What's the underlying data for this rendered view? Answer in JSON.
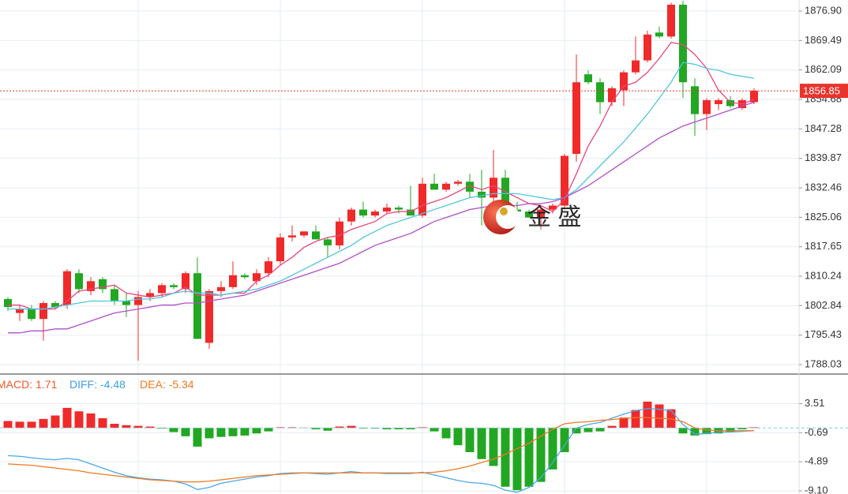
{
  "chart_data": [
    {
      "type": "candlestick",
      "open": [
        1804.5,
        1801,
        1802,
        1799.5,
        1803.5,
        1803,
        1811,
        1806.5,
        1809.5,
        1807,
        1804,
        1803,
        1805,
        1806,
        1808,
        1807,
        1811,
        1793.5,
        1806.5,
        1807.5,
        1810.5,
        1809,
        1811,
        1814,
        1820,
        1820.5,
        1821.5,
        1819.5,
        1818,
        1824,
        1827,
        1825.5,
        1826.5,
        1827.5,
        1827,
        1825.5,
        1833.5,
        1832,
        1833.5,
        1834,
        1831.5,
        1830,
        1835,
        1827,
        1826.5,
        1825,
        1827,
        1828,
        1841,
        1861,
        1859,
        1854,
        1857,
        1861.5,
        1864.5,
        1871.5,
        1870.5,
        1878.5,
        1858,
        1851,
        1853.5,
        1854.5,
        1852.5,
        1854
      ],
      "high": [
        1805,
        1803,
        1803,
        1804,
        1804,
        1812,
        1812,
        1810,
        1810,
        1808,
        1806,
        1806.5,
        1807,
        1808.5,
        1808.5,
        1811.5,
        1815,
        1807,
        1809,
        1814,
        1811,
        1812,
        1815,
        1821,
        1823,
        1821.5,
        1823,
        1820,
        1825,
        1827.5,
        1829,
        1827,
        1828.5,
        1828,
        1833,
        1835,
        1836,
        1834,
        1834.5,
        1836,
        1837,
        1842,
        1837,
        1829,
        1827,
        1828,
        1828.5,
        1841,
        1866,
        1862,
        1860,
        1858,
        1862,
        1870.5,
        1872,
        1873,
        1879,
        1879.5,
        1860,
        1855,
        1855,
        1855.5,
        1855,
        1857.5
      ],
      "low": [
        1801.5,
        1799,
        1799,
        1794,
        1802,
        1802,
        1806,
        1805.5,
        1806,
        1803,
        1800,
        1789,
        1804,
        1805,
        1807,
        1806,
        1794.5,
        1792,
        1805,
        1807,
        1809.5,
        1808,
        1810,
        1813,
        1819,
        1820,
        1819.5,
        1815,
        1817,
        1823,
        1825,
        1825,
        1826,
        1826,
        1825.5,
        1825,
        1832,
        1831.5,
        1833,
        1830,
        1823,
        1828,
        1825,
        1826,
        1825,
        1822,
        1826,
        1827,
        1839,
        1858.5,
        1851,
        1853,
        1853,
        1861,
        1864,
        1870,
        1870,
        1855,
        1845.5,
        1847,
        1852,
        1852.5,
        1852,
        1853.5
      ],
      "close": [
        1802.5,
        1802,
        1799.5,
        1803.5,
        1802.5,
        1811.5,
        1807,
        1809,
        1807,
        1804,
        1803,
        1805,
        1806,
        1808,
        1807.5,
        1811,
        1794.5,
        1806.5,
        1807.5,
        1810.5,
        1810,
        1811,
        1814,
        1820,
        1820.5,
        1821.5,
        1819.5,
        1818,
        1824,
        1827,
        1825.5,
        1826.5,
        1827.5,
        1827,
        1825.5,
        1833.5,
        1832,
        1833.5,
        1834,
        1831.5,
        1830,
        1835,
        1827,
        1826.5,
        1825,
        1827,
        1828,
        1840.5,
        1859,
        1859,
        1854,
        1857.5,
        1861.5,
        1864.5,
        1871,
        1870.5,
        1878.5,
        1859,
        1851,
        1854.5,
        1854.5,
        1853,
        1854.5,
        1856.85
      ],
      "up_color": "#f02a2a",
      "down_color": "#22a722",
      "series": [
        {
          "color": "#e8467c",
          "values": [
            1803,
            1803,
            1802,
            1802,
            1802,
            1804,
            1806.5,
            1807,
            1807.5,
            1808,
            1806,
            1805.5,
            1805,
            1805.5,
            1806,
            1807.5,
            1805.5,
            1805.5,
            1805.5,
            1806,
            1806,
            1809,
            1810.5,
            1813,
            1815,
            1817.5,
            1819,
            1820,
            1820.5,
            1822,
            1823,
            1824,
            1826,
            1826.5,
            1826.5,
            1828,
            1829,
            1830,
            1831.5,
            1833,
            1832,
            1833,
            1831.5,
            1830,
            1828.5,
            1828,
            1826.5,
            1829.5,
            1836,
            1843,
            1848,
            1854,
            1858,
            1859,
            1861.5,
            1865,
            1869,
            1868.5,
            1866,
            1862.5,
            1857,
            1854,
            1853.5,
            1854.7
          ]
        },
        {
          "color": "#4fc6dd",
          "values": [
            1802,
            1802,
            1802,
            1802,
            1802.5,
            1803,
            1803.5,
            1804,
            1804,
            1804,
            1804,
            1804.5,
            1804.5,
            1805,
            1806,
            1806.5,
            1806,
            1806,
            1805.5,
            1806,
            1806.5,
            1807,
            1808,
            1809,
            1810.5,
            1812,
            1813.5,
            1815,
            1816.5,
            1818,
            1820,
            1821.5,
            1823,
            1824,
            1825,
            1826,
            1827,
            1828,
            1829,
            1830,
            1830.5,
            1831,
            1831,
            1831,
            1830.5,
            1830,
            1829.5,
            1830,
            1832,
            1835,
            1838,
            1841,
            1844,
            1847.5,
            1851,
            1855,
            1859,
            1864,
            1863.5,
            1862.5,
            1862,
            1861,
            1860.5,
            1860
          ]
        },
        {
          "color": "#b04fc9",
          "values": [
            1796,
            1796,
            1796.5,
            1796.5,
            1797,
            1797,
            1798,
            1799,
            1800,
            1801,
            1801.5,
            1802,
            1802.5,
            1803,
            1803,
            1803.5,
            1803.5,
            1804,
            1804.5,
            1805,
            1805.5,
            1806.5,
            1807.5,
            1808.5,
            1809.5,
            1810.5,
            1811.5,
            1812.5,
            1813.5,
            1815,
            1816.5,
            1818,
            1819,
            1820,
            1821,
            1822.5,
            1824,
            1825,
            1826,
            1827,
            1827.5,
            1828,
            1828,
            1828,
            1828.5,
            1828.5,
            1829,
            1830,
            1831.5,
            1833,
            1835,
            1837,
            1839,
            1841,
            1843,
            1845,
            1846.5,
            1848,
            1849,
            1850,
            1851,
            1852,
            1853,
            1854
          ]
        }
      ],
      "last_price": 1856.85,
      "ylim": [
        1785.85,
        1879.68
      ],
      "yticks": [
        {
          "value": 1876.9,
          "label": "1876.90"
        },
        1869.49,
        1862.09,
        1854.68,
        1847.28,
        1839.87,
        1832.46,
        1825.06,
        1817.65,
        1810.24,
        1802.84,
        1795.43,
        1788.03
      ],
      "watermark": "金 盛"
    },
    {
      "type": "macd",
      "legend": [
        {
          "label": "MACD:",
          "value": 1.71,
          "color": "#f05a28"
        },
        {
          "label": "DIFF:",
          "value": -4.48,
          "color": "#3ba0e6"
        },
        {
          "label": "DEA:",
          "value": -5.34,
          "color": "#f07820"
        }
      ],
      "histogram": [
        1.0,
        0.9,
        0.9,
        1.3,
        1.8,
        2.9,
        2.4,
        2.1,
        1.4,
        0.6,
        0.4,
        0.3,
        0.2,
        -0.1,
        -0.6,
        -1.2,
        -2.7,
        -1.5,
        -1.3,
        -1.2,
        -1.1,
        -0.8,
        -0.5,
        0.1,
        0.1,
        0.05,
        -0.2,
        -0.4,
        0.2,
        0.3,
        -0.1,
        -0.1,
        -0.2,
        -0.2,
        -0.2,
        0.1,
        -0.5,
        -1.5,
        -2.5,
        -3.5,
        -4.5,
        -5.5,
        -8.5,
        -9.0,
        -8.5,
        -7.8,
        -6.0,
        -3.5,
        -0.8,
        -0.6,
        -0.5,
        0.3,
        1.5,
        2.6,
        3.8,
        3.4,
        2.7,
        -0.8,
        -1.1,
        -0.9,
        -0.8,
        -0.6,
        -0.2,
        0.1
      ],
      "up_color": "#f02a2a",
      "down_color": "#22a722",
      "series": [
        {
          "color": "#4aa8e8",
          "values": [
            -4.0,
            -4.1,
            -4.3,
            -4.5,
            -4.6,
            -4.4,
            -4.6,
            -5.2,
            -5.8,
            -6.4,
            -6.9,
            -7.2,
            -7.4,
            -7.5,
            -7.7,
            -8.1,
            -8.9,
            -8.6,
            -8.0,
            -7.7,
            -7.4,
            -7.1,
            -6.9,
            -6.6,
            -6.5,
            -6.5,
            -6.6,
            -6.7,
            -6.5,
            -6.3,
            -6.5,
            -6.5,
            -6.6,
            -6.6,
            -6.6,
            -6.4,
            -6.8,
            -7.2,
            -7.6,
            -7.9,
            -8.0,
            -8.3,
            -9.0,
            -9.3,
            -8.6,
            -7.2,
            -5.0,
            -2.5,
            0.0,
            0.5,
            0.8,
            1.4,
            2.0,
            2.5,
            2.8,
            2.7,
            2.5,
            0.5,
            -0.9,
            -0.8,
            -0.6,
            -0.6,
            -0.5,
            -0.4
          ]
        },
        {
          "color": "#f07820",
          "values": [
            -5.2,
            -5.3,
            -5.4,
            -5.6,
            -5.8,
            -6.0,
            -6.2,
            -6.5,
            -6.7,
            -6.9,
            -7.1,
            -7.3,
            -7.5,
            -7.6,
            -7.7,
            -7.8,
            -7.8,
            -7.7,
            -7.5,
            -7.3,
            -7.1,
            -6.9,
            -6.8,
            -6.7,
            -6.6,
            -6.5,
            -6.5,
            -6.5,
            -6.5,
            -6.5,
            -6.5,
            -6.5,
            -6.5,
            -6.5,
            -6.5,
            -6.5,
            -6.4,
            -6.2,
            -5.9,
            -5.5,
            -5.0,
            -4.5,
            -3.8,
            -3.0,
            -2.2,
            -1.2,
            -0.2,
            0.6,
            0.8,
            0.9,
            1.1,
            1.2,
            1.4,
            1.5,
            1.5,
            1.4,
            1.3,
            0.9,
            0.0,
            -0.3,
            -0.4,
            -0.4,
            -0.4,
            -0.4
          ]
        }
      ],
      "ylim": [
        -9.55,
        7.56
      ],
      "yticks": [
        3.51,
        -0.69,
        -4.89,
        {
          "value": -9.1,
          "label": "-9.10"
        }
      ]
    }
  ]
}
